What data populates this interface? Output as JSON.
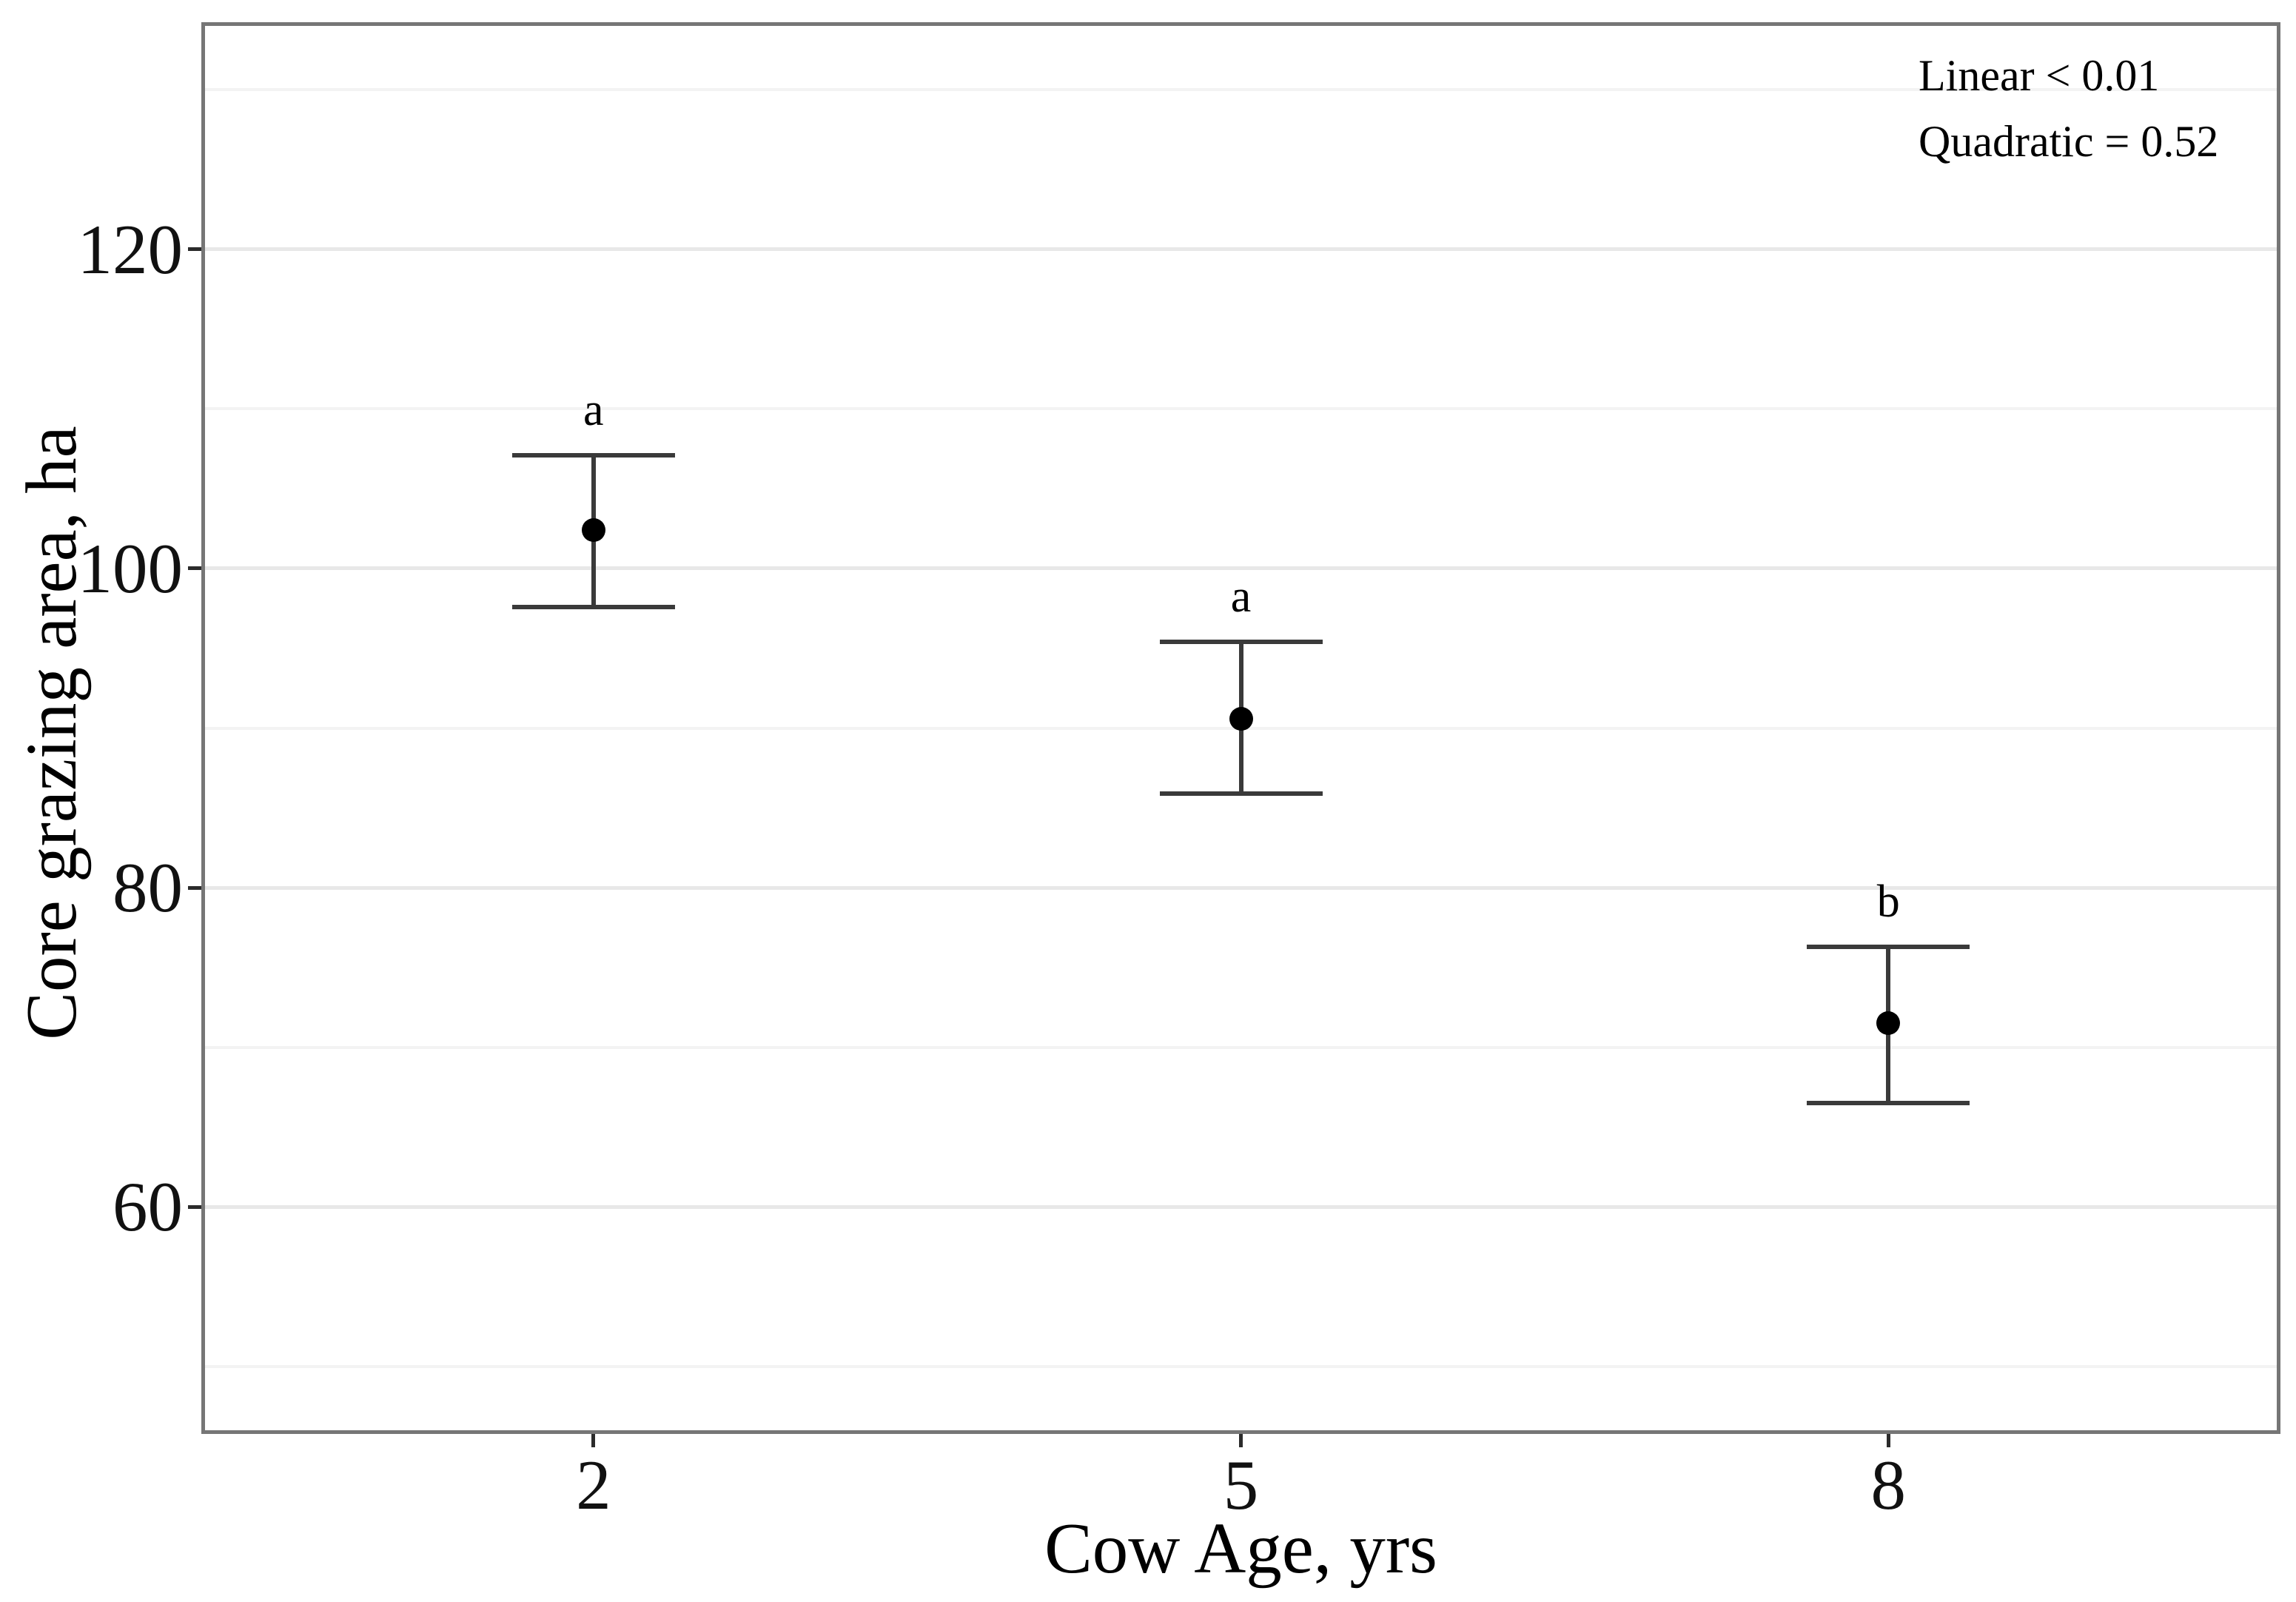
{
  "chart_data": {
    "type": "scatter",
    "title": "",
    "xlabel": "Cow Age, yrs",
    "ylabel": "Core grazing area, ha",
    "annotations": [
      "Linear < 0.01",
      "Quadratic = 0.52"
    ],
    "points": [
      {
        "x": 2,
        "mean": 102.4,
        "ci_lower": 97.6,
        "ci_upper": 107.1,
        "sig_letter": "a"
      },
      {
        "x": 5,
        "mean": 90.6,
        "ci_lower": 85.9,
        "ci_upper": 95.4,
        "sig_letter": "a"
      },
      {
        "x": 8,
        "mean": 71.5,
        "ci_lower": 66.5,
        "ci_upper": 76.3,
        "sig_letter": "b"
      }
    ],
    "xticks": {
      "values": [
        2,
        5,
        8
      ],
      "labels": [
        "2",
        "5",
        "8"
      ]
    },
    "yticks": {
      "values": [
        60,
        80,
        100,
        120
      ],
      "labels": [
        "60",
        "80",
        "100",
        "120"
      ]
    },
    "yticks_minor": [
      50,
      70,
      90,
      110,
      130
    ],
    "xlim": [
      0.2,
      9.8
    ],
    "ylim": [
      46,
      134
    ],
    "grid": "horizontal-only",
    "legend": "none",
    "colors": {
      "point": "#000000",
      "error_bar": "#3a3a3a",
      "panel_border": "#767676",
      "grid_major": "#e8e8e8",
      "grid_minor": "#f3f3f3",
      "tick_mark": "#2b2b2b",
      "text": "#111111",
      "background": "#ffffff"
    }
  }
}
